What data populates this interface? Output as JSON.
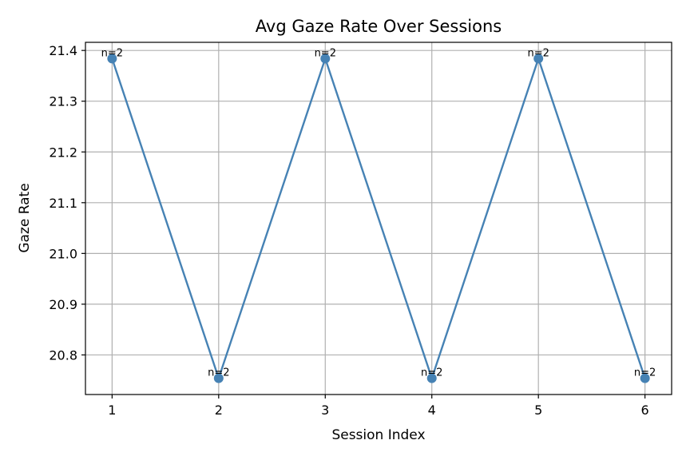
{
  "chart_data": {
    "type": "line",
    "title": "Avg Gaze Rate Over Sessions",
    "xlabel": "Session Index",
    "ylabel": "Gaze Rate",
    "x": [
      1,
      2,
      3,
      4,
      5,
      6
    ],
    "series": [
      {
        "values": [
          21.384,
          20.754,
          21.384,
          20.754,
          21.384,
          20.754
        ]
      }
    ],
    "data_labels": [
      "n=2",
      "n=2",
      "n=2",
      "n=2",
      "n=2",
      "n=2"
    ],
    "xticks": [
      1,
      2,
      3,
      4,
      5,
      6
    ],
    "yticks": [
      20.8,
      20.9,
      21.0,
      21.1,
      21.2,
      21.3,
      21.4
    ],
    "ytick_labels": [
      "20.8",
      "20.9",
      "21.0",
      "21.1",
      "21.2",
      "21.3",
      "21.4"
    ],
    "xlim": [
      0.75,
      6.25
    ],
    "ylim": [
      20.722,
      21.416
    ],
    "grid": true,
    "line_color": "#4682b4",
    "marker": "circle"
  }
}
